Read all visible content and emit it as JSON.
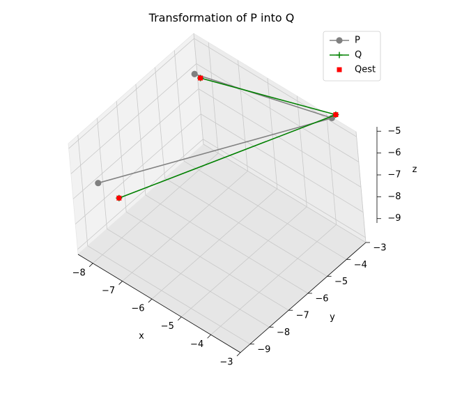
{
  "chart_data": {
    "type": "scatter",
    "projection": "3d",
    "title": "Transformation of P into Q",
    "xlabel": "x",
    "ylabel": "y",
    "zlabel": "z",
    "xlim": [
      -8.5,
      -3
    ],
    "ylim": [
      -9.5,
      -3
    ],
    "zlim": [
      -9.2,
      -4.8
    ],
    "xticks": [
      -8,
      -7,
      -6,
      -5,
      -4,
      -3
    ],
    "yticks": [
      -9,
      -8,
      -7,
      -6,
      -5,
      -4,
      -3
    ],
    "zticks": [
      -9,
      -8,
      -7,
      -6,
      -5
    ],
    "grid": true,
    "legend_position": "top-right",
    "series": [
      {
        "name": "P",
        "style": "line-marker",
        "marker": "circle",
        "color": "#808080",
        "points": [
          {
            "x": -8.3,
            "y": -3.4,
            "z": -6.0
          },
          {
            "x": -3.3,
            "y": -3.7,
            "z": -4.0
          },
          {
            "x": -8.3,
            "y": -8.5,
            "z": -6.9
          }
        ]
      },
      {
        "name": "Q",
        "style": "line-plus",
        "marker": "plus",
        "color": "#008000",
        "points": [
          {
            "x": -8.4,
            "y": -3.0,
            "z": -6.5
          },
          {
            "x": -3.3,
            "y": -3.5,
            "z": -4.0
          },
          {
            "x": -7.6,
            "y": -8.5,
            "z": -7.0
          }
        ]
      },
      {
        "name": "Qest",
        "style": "scatter",
        "marker": "square",
        "color": "#ff0000",
        "points": [
          {
            "x": -8.4,
            "y": -3.0,
            "z": -6.5
          },
          {
            "x": -3.3,
            "y": -3.5,
            "z": -4.0
          },
          {
            "x": -7.6,
            "y": -8.5,
            "z": -7.0
          }
        ]
      }
    ]
  }
}
